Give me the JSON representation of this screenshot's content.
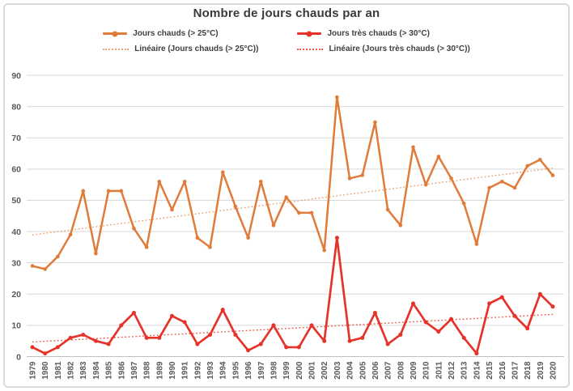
{
  "title": "Nombre de jours chauds par an",
  "colors": {
    "series_hot": "#e07b39",
    "series_very_hot": "#e5332a",
    "trend_hot": "#eda273",
    "trend_very_hot": "#e9594c",
    "gridline": "#d9d9d9",
    "axis_line": "#c0c0c0",
    "axis_text": "#595959",
    "title_text": "#3a3a3a"
  },
  "chart_data": {
    "type": "line",
    "title": "Nombre de jours chauds par an",
    "x": [
      1979,
      1980,
      1981,
      1982,
      1983,
      1984,
      1985,
      1986,
      1987,
      1988,
      1989,
      1990,
      1991,
      1992,
      1993,
      1994,
      1995,
      1996,
      1997,
      1998,
      1999,
      2000,
      2001,
      2002,
      2003,
      2004,
      2005,
      2006,
      2007,
      2008,
      2009,
      2010,
      2011,
      2012,
      2013,
      2014,
      2015,
      2016,
      2017,
      2018,
      2019,
      2020
    ],
    "series": [
      {
        "name": "Jours chauds (> 25°C)",
        "color": "#e07b39",
        "marker": "circle",
        "values": [
          29,
          28,
          32,
          39,
          53,
          33,
          53,
          53,
          41,
          35,
          56,
          47,
          56,
          38,
          35,
          59,
          48,
          38,
          56,
          42,
          51,
          46,
          46,
          34,
          83,
          57,
          58,
          75,
          47,
          42,
          67,
          55,
          64,
          57,
          49,
          36,
          54,
          56,
          54,
          61,
          63,
          58
        ]
      },
      {
        "name": "Jours très chauds (> 30°C)",
        "color": "#e5332a",
        "marker": "circle",
        "values": [
          3,
          1,
          3,
          6,
          7,
          5,
          4,
          10,
          14,
          6,
          6,
          13,
          11,
          4,
          7,
          15,
          7,
          2,
          4,
          10,
          3,
          3,
          10,
          5,
          38,
          5,
          6,
          14,
          4,
          7,
          17,
          11,
          8,
          12,
          6,
          1,
          17,
          19,
          13,
          9,
          20,
          16
        ]
      }
    ],
    "trendlines": [
      {
        "name": "Linéaire (Jours chauds (> 25°C))",
        "series": 0,
        "color": "#eda273",
        "style": "dotted"
      },
      {
        "name": "Linéaire (Jours très chauds (> 30°C))",
        "series": 1,
        "color": "#e9594c",
        "style": "dotted"
      }
    ],
    "ylim": [
      0,
      90
    ],
    "ytick_step": 10,
    "grid": "horizontal",
    "legend_position": "top",
    "x_label_rotation": -90
  }
}
